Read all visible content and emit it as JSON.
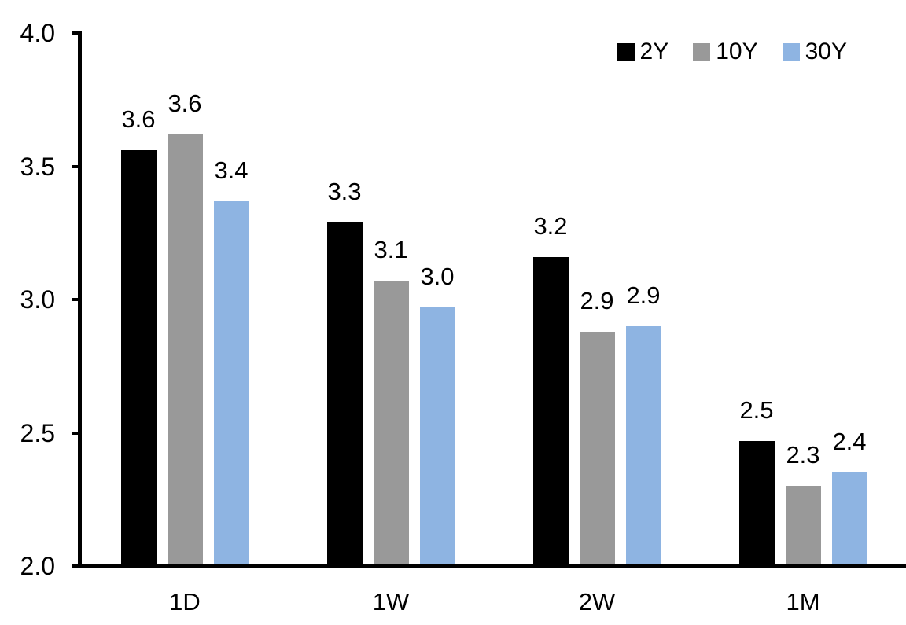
{
  "chart_data": {
    "type": "bar",
    "title": "",
    "xlabel": "",
    "ylabel": "",
    "categories": [
      "1D",
      "1W",
      "2W",
      "1M"
    ],
    "series": [
      {
        "name": "2Y",
        "color": "#000000",
        "values": [
          3.56,
          3.29,
          3.16,
          2.47
        ],
        "labels": [
          "3.6",
          "3.3",
          "3.2",
          "2.5"
        ]
      },
      {
        "name": "10Y",
        "color": "#999999",
        "values": [
          3.62,
          3.07,
          2.88,
          2.3
        ],
        "labels": [
          "3.6",
          "3.1",
          "2.9",
          "2.3"
        ]
      },
      {
        "name": "30Y",
        "color": "#8EB4E2",
        "values": [
          3.37,
          2.97,
          2.9,
          2.35
        ],
        "labels": [
          "3.4",
          "3.0",
          "2.9",
          "2.4"
        ]
      }
    ],
    "ylim": [
      2.0,
      4.0
    ],
    "yticks": [
      {
        "value": 2.0,
        "label": "2.0"
      },
      {
        "value": 2.5,
        "label": "2.5"
      },
      {
        "value": 3.0,
        "label": "3.0"
      },
      {
        "value": 3.5,
        "label": "3.5"
      },
      {
        "value": 4.0,
        "label": "4.0"
      }
    ],
    "grid": false,
    "legend_position": "top-right",
    "axis_color": "#000000",
    "background_color": "#ffffff"
  }
}
